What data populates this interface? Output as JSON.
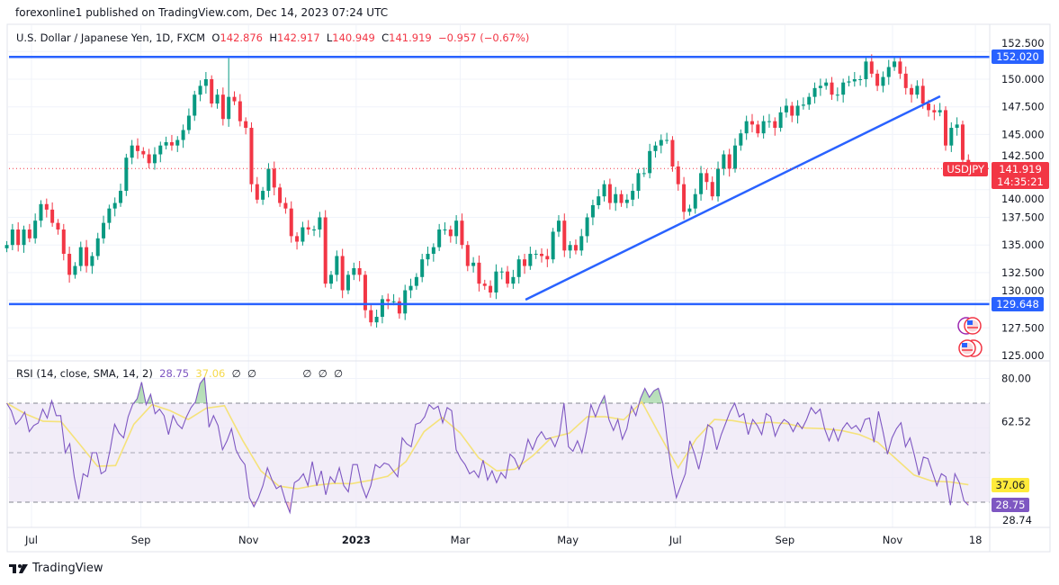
{
  "publish_line": "forexonline1 published on TradingView.com, Dec 14, 2023 07:24 UTC",
  "legend": {
    "symbol": "U.S. Dollar / Japanese Yen, 1D, FXCM",
    "o_label": "O",
    "o": "142.876",
    "h_label": "H",
    "h": "142.917",
    "l_label": "L",
    "l": "140.949",
    "c_label": "C",
    "c": "141.919",
    "change": "−0.957 (−0.67%)"
  },
  "rsi_legend": {
    "title": "RSI (14, close, SMA, 14, 2)",
    "rsi": "28.75",
    "sma": "37.06",
    "na": [
      "∅",
      "∅",
      "∅",
      "∅",
      "∅"
    ]
  },
  "badges": {
    "resistance": "152.020",
    "support": "129.648",
    "symbol": "USDJPY",
    "last_price": "141.919",
    "countdown": "14:35:21",
    "rsi": "28.75",
    "rsi_sma": "37.06",
    "rsi_min": "28.74"
  },
  "colors": {
    "up": "#089981",
    "down": "#f23645",
    "lines": "#2962ff",
    "rsi": "#7e57c2",
    "rsi_sma": "#f5e27a",
    "rsi_band": "#ede7f6"
  },
  "logo_text": "TradingView",
  "chart_data": [
    {
      "type": "candlestick",
      "symbol": "USDJPY",
      "x_start": "2022-06-17",
      "x_end": "2023-12-14",
      "ylim": [
        124.5,
        153.5
      ],
      "grid": true,
      "y_tick_labels": [
        "152.500",
        "150.000",
        "147.500",
        "145.000",
        "142.500",
        "140.000",
        "137.500",
        "135.000",
        "132.500",
        "130.000",
        "127.500",
        "125.000"
      ],
      "x_ticks": [
        {
          "label": "Jul",
          "date": "2022-07-01"
        },
        {
          "label": "Sep",
          "date": "2022-09-01"
        },
        {
          "label": "Nov",
          "date": "2022-11-01"
        },
        {
          "label": "2023",
          "date": "2023-01-01",
          "bold": true
        },
        {
          "label": "Mar",
          "date": "2023-03-01"
        },
        {
          "label": "May",
          "date": "2023-05-01"
        },
        {
          "label": "Jul",
          "date": "2023-07-01"
        },
        {
          "label": "Sep",
          "date": "2023-09-01"
        },
        {
          "label": "Nov",
          "date": "2023-11-01"
        },
        {
          "label": "18",
          "date": "2023-12-18"
        }
      ],
      "closes": [
        135.0,
        136.4,
        135.0,
        136.4,
        135.6,
        137.2,
        138.7,
        138.2,
        137.0,
        136.4,
        134.2,
        132.3,
        133.1,
        134.8,
        133.1,
        134.0,
        135.6,
        137.0,
        138.3,
        138.8,
        139.9,
        142.9,
        144.0,
        143.5,
        143.2,
        142.4,
        143.2,
        144.0,
        144.3,
        144.0,
        144.5,
        145.4,
        146.7,
        148.6,
        149.4,
        150.0,
        147.8,
        148.6,
        146.4,
        148.4,
        148.0,
        146.2,
        145.6,
        140.5,
        139.1,
        139.9,
        141.9,
        140.2,
        138.8,
        138.3,
        135.8,
        135.3,
        136.6,
        136.4,
        136.4,
        137.5,
        131.5,
        132.3,
        134.0,
        130.9,
        132.3,
        132.9,
        132.3,
        129.1,
        128.0,
        128.5,
        130.1,
        129.9,
        129.9,
        128.8,
        130.9,
        131.3,
        132.1,
        133.7,
        134.2,
        134.8,
        136.4,
        136.4,
        135.8,
        137.2,
        135.0,
        133.1,
        133.4,
        131.5,
        131.3,
        130.7,
        132.6,
        132.6,
        131.5,
        132.1,
        133.7,
        133.1,
        134.2,
        134.2,
        134.0,
        133.7,
        136.2,
        137.2,
        134.5,
        135.0,
        134.5,
        135.8,
        137.5,
        138.6,
        139.4,
        140.5,
        138.8,
        139.6,
        138.8,
        139.1,
        139.9,
        141.5,
        141.5,
        143.5,
        144.0,
        144.5,
        144.5,
        142.1,
        140.5,
        138.0,
        138.3,
        139.6,
        141.5,
        140.7,
        139.4,
        141.9,
        143.2,
        141.9,
        144.0,
        145.1,
        146.2,
        145.9,
        145.1,
        146.2,
        146.2,
        145.6,
        147.0,
        147.6,
        146.7,
        147.6,
        147.7,
        148.4,
        149.2,
        149.4,
        149.7,
        148.6,
        148.6,
        149.7,
        149.8,
        150.0,
        150.0,
        151.6,
        150.5,
        149.4,
        150.2,
        151.1,
        151.6,
        150.5,
        149.2,
        148.6,
        149.4,
        147.8,
        147.2,
        147.0,
        147.2,
        144.0,
        145.6,
        145.9,
        142.7,
        141.919
      ],
      "period_high": {
        "date": "2022-10-21",
        "value": 151.9
      },
      "last_price": 141.919,
      "horizontal_levels": [
        152.02,
        129.648
      ],
      "trendline": {
        "from": {
          "date": "2023-04-07",
          "value": 130.05
        },
        "to": {
          "date": "2023-11-28",
          "value": 148.45
        }
      }
    },
    {
      "type": "line",
      "title": "RSI (14, close, SMA, 14, 2)",
      "x_start": "2022-06-17",
      "x_end": "2023-12-14",
      "ylim": [
        20,
        85
      ],
      "bands": [
        70,
        50,
        30
      ],
      "grid_levels": [
        80,
        60,
        40
      ],
      "y_tick_labels": [
        "80.00",
        "62.52"
      ],
      "series": [
        {
          "name": "RSI",
          "values": [
            70,
            67,
            61.5,
            63.4,
            66.4,
            58.5,
            61,
            62,
            67.6,
            64,
            71,
            65,
            65,
            50,
            53.6,
            40.3,
            31.2,
            41.5,
            40.3,
            50,
            50,
            41.5,
            42.7,
            51.2,
            61.5,
            57.9,
            56,
            64.5,
            69.4,
            71.8,
            78.5,
            69.4,
            73.6,
            65.8,
            67.6,
            65,
            57.3,
            65,
            61.5,
            59.7,
            64.5,
            68.2,
            70.6,
            77.9,
            80.3,
            60.3,
            65,
            61,
            51.2,
            54.8,
            59.7,
            51.2,
            47.6,
            45.2,
            31.8,
            28.2,
            31.8,
            36.7,
            43.9,
            39.1,
            35.5,
            36.7,
            30.6,
            25.8,
            37.9,
            39.1,
            41.5,
            36.7,
            46.4,
            36.7,
            42.7,
            33,
            40.3,
            37.9,
            43.9,
            36.7,
            34.2,
            45.2,
            45.2,
            36.7,
            31.8,
            36.7,
            45.2,
            43.9,
            45.8,
            45.2,
            42.7,
            40.3,
            56,
            53.6,
            52.4,
            61.5,
            62.1,
            64.5,
            69.4,
            67.6,
            68.8,
            62.1,
            68.2,
            67,
            51.2,
            47.6,
            45.2,
            41.5,
            42.7,
            40,
            47,
            39,
            42.7,
            37.9,
            42,
            39.7,
            49.4,
            47.6,
            43.3,
            47.6,
            55.4,
            51.2,
            56,
            58.5,
            55.4,
            56,
            52.4,
            57.3,
            70,
            52.4,
            50.6,
            54.8,
            50,
            58.5,
            69.4,
            64.5,
            69.4,
            73,
            63.4,
            59,
            63.4,
            55.4,
            59.7,
            68.8,
            65,
            71.8,
            76,
            72.4,
            75,
            76,
            70,
            54.8,
            41.5,
            31.8,
            36.7,
            41.5,
            54.8,
            50,
            43.3,
            51.2,
            61.3,
            60,
            51.2,
            57.3,
            62,
            66.7,
            70,
            64.5,
            65.8,
            57.3,
            63.4,
            61,
            57.3,
            65.8,
            64.5,
            56.7,
            61,
            63.4,
            62.1,
            58.5,
            62.1,
            59.7,
            63.4,
            68.2,
            65.8,
            67.6,
            59.7,
            54.8,
            59.7,
            54.8,
            59.7,
            62.1,
            59.7,
            61,
            58.5,
            63.4,
            64,
            54.2,
            66.7,
            58.5,
            49.4,
            56,
            59.7,
            62.1,
            52.4,
            56,
            48.8,
            40.9,
            48.2,
            47.6,
            42.1,
            36.7,
            41.5,
            40.3,
            28.8,
            41.5,
            37.9,
            30.6,
            28.75
          ]
        },
        {
          "name": "SMA",
          "values": [
            70,
            65.8,
            62.7,
            62.5,
            53.6,
            44.5,
            44.8,
            61.5,
            69.4,
            67,
            63.4,
            68,
            69,
            55,
            42.7,
            36.5,
            35.4,
            36.8,
            37.6,
            37.5,
            38.8,
            40.5,
            46.4,
            58.5,
            64.2,
            57.9,
            48,
            42.7,
            43.3,
            48.8,
            56,
            57.9,
            64.6,
            64.5,
            63.3,
            70.6,
            57,
            43.9,
            55.6,
            63.4,
            63,
            61.7,
            62.3,
            61.8,
            60,
            59.7,
            59,
            57.3,
            54.2,
            47.6,
            41,
            38.5,
            38.2,
            37.06
          ]
        }
      ]
    }
  ]
}
